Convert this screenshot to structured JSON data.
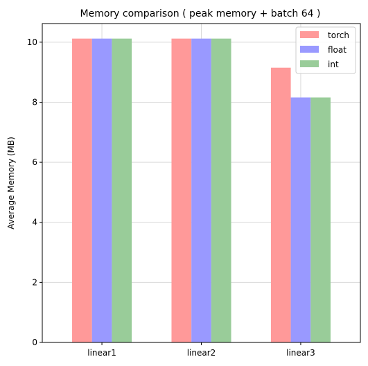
{
  "chart_data": {
    "type": "bar",
    "title": "Memory comparison ( peak memory + batch 64 )",
    "xlabel": "",
    "ylabel": "Average Memory (MB)",
    "categories": [
      "linear1",
      "linear2",
      "linear3"
    ],
    "series": [
      {
        "name": "torch",
        "values": [
          10.12,
          10.12,
          9.15
        ],
        "color": "#ff9999"
      },
      {
        "name": "float",
        "values": [
          10.12,
          10.12,
          8.16
        ],
        "color": "#9999ff"
      },
      {
        "name": "int",
        "values": [
          10.12,
          10.12,
          8.16
        ],
        "color": "#99cc99"
      }
    ],
    "ylim": [
      0,
      10.62
    ],
    "yticks": [
      0,
      2,
      4,
      6,
      8,
      10
    ],
    "grid": true,
    "legend_position": "top-right"
  }
}
